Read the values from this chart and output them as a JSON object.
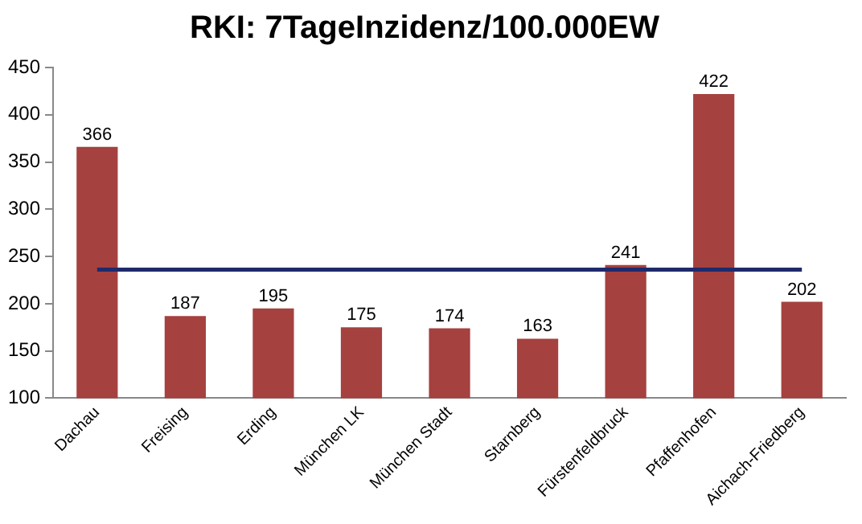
{
  "chart_data": {
    "type": "bar",
    "title": "RKI: 7TageInzidenz/100.000EW",
    "categories": [
      "Dachau",
      "Freising",
      "Erding",
      "München LK",
      "München Stadt",
      "Starnberg",
      "Fürstenfeldbruck",
      "Pfaffenhofen",
      "Aichach-Friedberg"
    ],
    "series": [
      {
        "color": "#a5413f",
        "values": [
          366,
          187,
          195,
          175,
          174,
          163,
          241,
          422,
          202
        ],
        "data_labels": true
      },
      {
        "type": "line",
        "color": "#1f2a6b",
        "values": [
          236,
          236,
          236,
          236,
          236,
          236,
          236,
          236,
          236
        ],
        "marker": "none"
      }
    ],
    "ylim": [
      100,
      450
    ],
    "yticks": [
      100,
      150,
      200,
      250,
      300,
      350,
      400,
      450
    ],
    "grid": false,
    "legend": false
  }
}
